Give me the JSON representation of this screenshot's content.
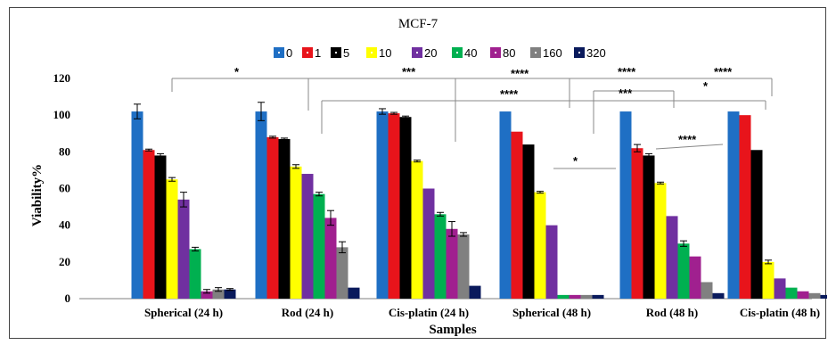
{
  "chart_data": {
    "type": "bar",
    "title": "MCF-7",
    "xlabel": "Samples",
    "ylabel": "Viability%",
    "ylim": [
      0,
      120
    ],
    "yticks": [
      0,
      20,
      40,
      60,
      80,
      100,
      120
    ],
    "grid": false,
    "legend_position": "top",
    "categories": [
      "Spherical (24 h)",
      "Rod (24 h)",
      "Cis-platin (24 h)",
      "Spherical (48 h)",
      "Rod (48 h)",
      "Cis-platin (48 h)"
    ],
    "series": [
      {
        "name": "0",
        "color": "#1f6fc4",
        "values": [
          102,
          102,
          102,
          102,
          102,
          102
        ],
        "errors": [
          4,
          5,
          1.5,
          0,
          0,
          0
        ]
      },
      {
        "name": "1",
        "color": "#e8141b",
        "values": [
          81,
          88,
          101,
          91,
          82,
          100
        ],
        "errors": [
          0.5,
          0.5,
          0.5,
          0,
          2,
          0
        ]
      },
      {
        "name": "5",
        "color": "#000000",
        "values": [
          78,
          87,
          99,
          84,
          78,
          81
        ],
        "errors": [
          1,
          0.5,
          0.5,
          0,
          1,
          0
        ]
      },
      {
        "name": "10",
        "color": "#ffff00",
        "values": [
          65,
          72,
          75,
          58,
          63,
          20
        ],
        "errors": [
          1,
          1,
          0.5,
          0.5,
          0.5,
          1
        ]
      },
      {
        "name": "20",
        "color": "#7030a0",
        "values": [
          54,
          68,
          60,
          40,
          45,
          11
        ],
        "errors": [
          4,
          0,
          0,
          0,
          0,
          0
        ]
      },
      {
        "name": "40",
        "color": "#00b050",
        "values": [
          27,
          57,
          46,
          2,
          30,
          6
        ],
        "errors": [
          1,
          1,
          1,
          0,
          1.5,
          0
        ]
      },
      {
        "name": "80",
        "color": "#a0208f",
        "values": [
          4,
          44,
          38,
          2,
          23,
          4
        ],
        "errors": [
          1,
          4,
          4,
          0,
          0,
          0
        ]
      },
      {
        "name": "160",
        "color": "#808080",
        "values": [
          5,
          28,
          35,
          2,
          9,
          3
        ],
        "errors": [
          1,
          3,
          1,
          0,
          0,
          0
        ]
      },
      {
        "name": "320",
        "color": "#0a1a5c",
        "values": [
          5,
          6,
          7,
          2,
          3,
          2
        ],
        "errors": [
          0.5,
          0,
          0,
          0,
          0,
          0
        ]
      }
    ],
    "significance": [
      "*",
      "***",
      "****",
      "****",
      "****",
      "****",
      "***",
      "*",
      "*",
      "****"
    ]
  }
}
